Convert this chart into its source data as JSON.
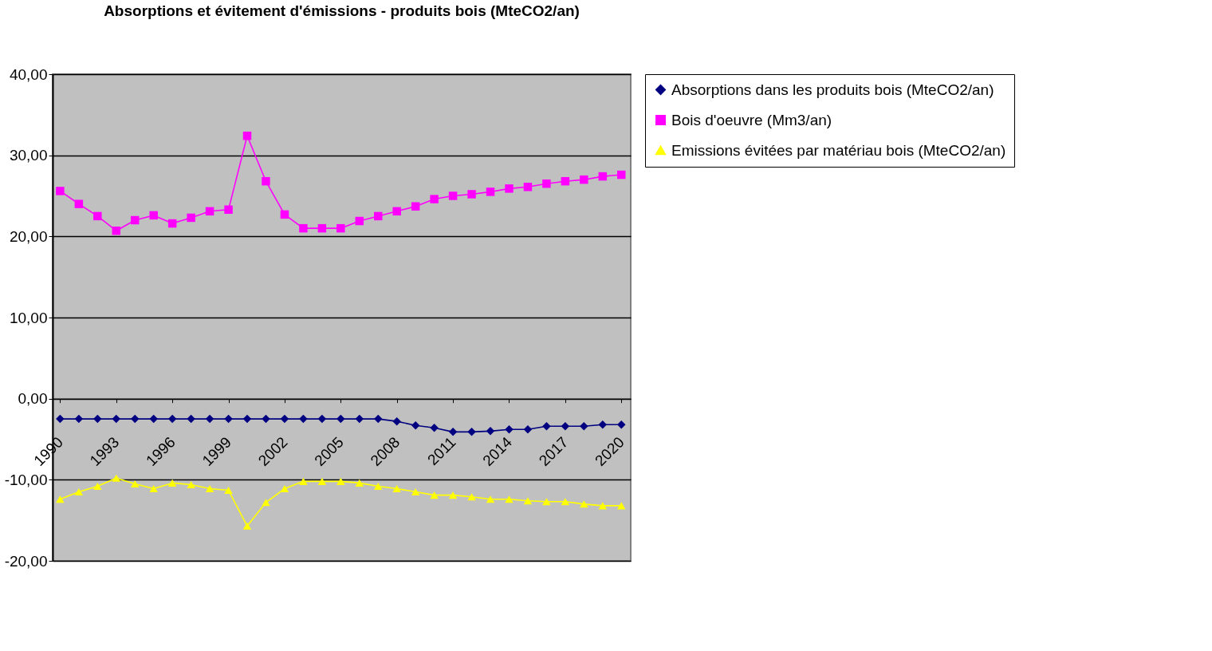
{
  "chart_data": {
    "type": "line",
    "title": "Absorptions et évitement d'émissions - produits bois (MteCO2/an)",
    "x": [
      1990,
      1991,
      1992,
      1993,
      1994,
      1995,
      1996,
      1997,
      1998,
      1999,
      2000,
      2001,
      2002,
      2003,
      2004,
      2005,
      2006,
      2007,
      2008,
      2009,
      2010,
      2011,
      2012,
      2013,
      2014,
      2015,
      2016,
      2017,
      2018,
      2019,
      2020
    ],
    "series": [
      {
        "name": "Absorptions dans les produits bois (MteCO2/an)",
        "color": "#000080",
        "marker": "diamond",
        "values": [
          -2.5,
          -2.5,
          -2.5,
          -2.5,
          -2.5,
          -2.5,
          -2.5,
          -2.5,
          -2.5,
          -2.5,
          -2.5,
          -2.5,
          -2.5,
          -2.5,
          -2.5,
          -2.5,
          -2.5,
          -2.5,
          -2.8,
          -3.3,
          -3.6,
          -4.1,
          -4.1,
          -4.0,
          -3.8,
          -3.8,
          -3.4,
          -3.4,
          -3.4,
          -3.2,
          -3.2
        ]
      },
      {
        "name": "Bois d'oeuvre (Mm3/an)",
        "color": "#ff00ff",
        "marker": "square",
        "values": [
          25.6,
          24.0,
          22.5,
          20.7,
          22.0,
          22.6,
          21.6,
          22.3,
          23.1,
          23.3,
          32.4,
          26.8,
          22.7,
          21.0,
          21.0,
          21.0,
          21.9,
          22.5,
          23.1,
          23.7,
          24.6,
          25.0,
          25.2,
          25.5,
          25.9,
          26.1,
          26.5,
          26.8,
          27.0,
          27.4,
          27.6
        ]
      },
      {
        "name": "Emissions évitées par matériau bois (MteCO2/an)",
        "color": "#ffff00",
        "marker": "triangle",
        "values": [
          -12.4,
          -11.5,
          -10.8,
          -9.8,
          -10.5,
          -11.1,
          -10.4,
          -10.6,
          -11.1,
          -11.3,
          -15.7,
          -12.8,
          -11.1,
          -10.2,
          -10.2,
          -10.2,
          -10.4,
          -10.8,
          -11.1,
          -11.5,
          -11.9,
          -11.9,
          -12.1,
          -12.4,
          -12.4,
          -12.6,
          -12.7,
          -12.7,
          -13.0,
          -13.2,
          -13.2
        ]
      }
    ],
    "xlim": [
      1989.6,
      2020.5
    ],
    "xticks": [
      1990,
      1993,
      1996,
      1999,
      2002,
      2005,
      2008,
      2011,
      2014,
      2017,
      2020
    ],
    "ylim": [
      -20,
      40
    ],
    "yticks": [
      {
        "value": -20,
        "label": "-20,00"
      },
      {
        "value": -10,
        "label": "-10,00"
      },
      {
        "value": 0,
        "label": "0,00"
      },
      {
        "value": 10,
        "label": "10,00"
      },
      {
        "value": 20,
        "label": "20,00"
      },
      {
        "value": 30,
        "label": "30,00"
      },
      {
        "value": 40,
        "label": "40,00"
      }
    ],
    "grid": "y",
    "legend": "right",
    "line_style": "solid"
  }
}
